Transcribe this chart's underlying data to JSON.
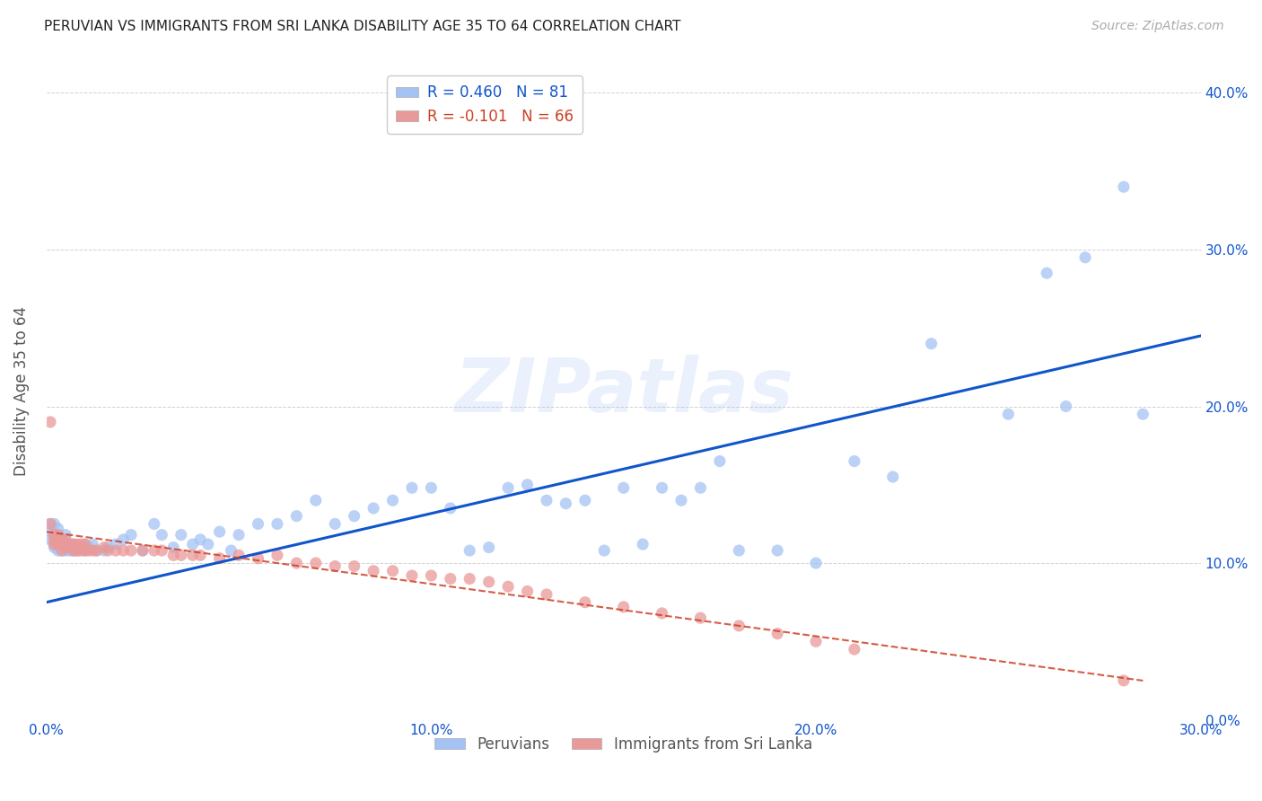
{
  "title": "PERUVIAN VS IMMIGRANTS FROM SRI LANKA DISABILITY AGE 35 TO 64 CORRELATION CHART",
  "source": "Source: ZipAtlas.com",
  "ylabel_label": "Disability Age 35 to 64",
  "xlim": [
    0.0,
    0.3
  ],
  "ylim": [
    0.0,
    0.42
  ],
  "ytick_vals": [
    0.0,
    0.1,
    0.2,
    0.3,
    0.4
  ],
  "xtick_vals": [
    0.0,
    0.1,
    0.2,
    0.3
  ],
  "legend_blue_label": "R = 0.460   N = 81",
  "legend_pink_label": "R = -0.101   N = 66",
  "legend_bottom_blue": "Peruvians",
  "legend_bottom_pink": "Immigrants from Sri Lanka",
  "blue_color": "#a4c2f4",
  "pink_color": "#ea9999",
  "blue_line_color": "#1155cc",
  "pink_line_color": "#cc4125",
  "watermark_text": "ZIPatlas",
  "blue_trendline_x": [
    0.0,
    0.3
  ],
  "blue_trendline_y": [
    0.075,
    0.245
  ],
  "pink_trendline_x": [
    0.0,
    0.285
  ],
  "pink_trendline_y": [
    0.12,
    0.025
  ],
  "background_color": "#ffffff",
  "grid_color": "#cccccc",
  "peruvian_x": [
    0.001,
    0.001,
    0.001,
    0.002,
    0.002,
    0.002,
    0.002,
    0.003,
    0.003,
    0.003,
    0.003,
    0.004,
    0.004,
    0.004,
    0.005,
    0.005,
    0.005,
    0.006,
    0.006,
    0.007,
    0.007,
    0.008,
    0.009,
    0.01,
    0.01,
    0.011,
    0.012,
    0.013,
    0.015,
    0.016,
    0.018,
    0.02,
    0.022,
    0.025,
    0.028,
    0.03,
    0.033,
    0.035,
    0.038,
    0.04,
    0.042,
    0.045,
    0.048,
    0.05,
    0.055,
    0.06,
    0.065,
    0.07,
    0.075,
    0.08,
    0.085,
    0.09,
    0.095,
    0.1,
    0.105,
    0.11,
    0.115,
    0.12,
    0.125,
    0.13,
    0.135,
    0.14,
    0.145,
    0.15,
    0.155,
    0.16,
    0.165,
    0.17,
    0.175,
    0.18,
    0.19,
    0.2,
    0.21,
    0.22,
    0.23,
    0.25,
    0.26,
    0.265,
    0.27,
    0.28,
    0.285
  ],
  "peruvian_y": [
    0.115,
    0.12,
    0.125,
    0.11,
    0.112,
    0.118,
    0.125,
    0.108,
    0.112,
    0.118,
    0.122,
    0.108,
    0.112,
    0.115,
    0.108,
    0.112,
    0.118,
    0.108,
    0.112,
    0.108,
    0.112,
    0.108,
    0.11,
    0.108,
    0.112,
    0.11,
    0.112,
    0.108,
    0.108,
    0.11,
    0.112,
    0.115,
    0.118,
    0.108,
    0.125,
    0.118,
    0.11,
    0.118,
    0.112,
    0.115,
    0.112,
    0.12,
    0.108,
    0.118,
    0.125,
    0.125,
    0.13,
    0.14,
    0.125,
    0.13,
    0.135,
    0.14,
    0.148,
    0.148,
    0.135,
    0.108,
    0.11,
    0.148,
    0.15,
    0.14,
    0.138,
    0.14,
    0.108,
    0.148,
    0.112,
    0.148,
    0.14,
    0.148,
    0.165,
    0.108,
    0.108,
    0.1,
    0.165,
    0.155,
    0.24,
    0.195,
    0.285,
    0.2,
    0.295,
    0.34,
    0.195
  ],
  "srilanka_x": [
    0.001,
    0.001,
    0.002,
    0.002,
    0.002,
    0.003,
    0.003,
    0.003,
    0.004,
    0.004,
    0.004,
    0.005,
    0.005,
    0.005,
    0.006,
    0.006,
    0.007,
    0.007,
    0.008,
    0.008,
    0.009,
    0.009,
    0.01,
    0.01,
    0.011,
    0.012,
    0.013,
    0.015,
    0.016,
    0.018,
    0.02,
    0.022,
    0.025,
    0.028,
    0.03,
    0.033,
    0.035,
    0.038,
    0.04,
    0.045,
    0.05,
    0.055,
    0.06,
    0.065,
    0.07,
    0.075,
    0.08,
    0.085,
    0.09,
    0.095,
    0.1,
    0.105,
    0.11,
    0.115,
    0.12,
    0.125,
    0.13,
    0.14,
    0.15,
    0.16,
    0.17,
    0.18,
    0.19,
    0.2,
    0.21,
    0.28
  ],
  "srilanka_y": [
    0.19,
    0.125,
    0.115,
    0.112,
    0.118,
    0.112,
    0.115,
    0.118,
    0.108,
    0.112,
    0.115,
    0.11,
    0.112,
    0.115,
    0.11,
    0.112,
    0.108,
    0.112,
    0.108,
    0.112,
    0.108,
    0.112,
    0.108,
    0.112,
    0.108,
    0.108,
    0.108,
    0.11,
    0.108,
    0.108,
    0.108,
    0.108,
    0.108,
    0.108,
    0.108,
    0.105,
    0.105,
    0.105,
    0.105,
    0.103,
    0.105,
    0.103,
    0.105,
    0.1,
    0.1,
    0.098,
    0.098,
    0.095,
    0.095,
    0.092,
    0.092,
    0.09,
    0.09,
    0.088,
    0.085,
    0.082,
    0.08,
    0.075,
    0.072,
    0.068,
    0.065,
    0.06,
    0.055,
    0.05,
    0.045,
    0.025
  ]
}
